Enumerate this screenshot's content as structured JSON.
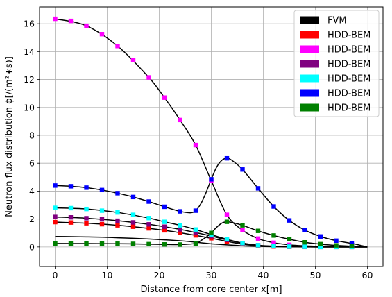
{
  "chart_data": {
    "type": "line",
    "xlabel": "Distance from core center x[m]",
    "ylabel": "Neutron flux distribution ϕ[/(m²∗s)]",
    "xlim": [
      -3,
      63
    ],
    "ylim": [
      -1.4,
      17.2
    ],
    "xticks": [
      0,
      10,
      20,
      30,
      40,
      50,
      60
    ],
    "yticks": [
      0,
      2,
      4,
      6,
      8,
      10,
      12,
      14,
      16
    ],
    "grid": true,
    "legend_position": "top-right",
    "colors": {
      "fvm": "#000000",
      "red": "#ff0000",
      "magenta": "#ff00ff",
      "purple": "#800080",
      "cyan": "#00ffff",
      "blue": "#0000ff",
      "green": "#008000"
    },
    "series": [
      {
        "name": "FVM",
        "color": "#000000",
        "style": "line",
        "x": [
          0,
          3,
          6,
          9,
          12,
          15,
          18,
          21,
          24,
          26,
          27,
          28,
          29,
          30,
          31,
          33,
          36,
          39,
          42,
          45,
          48,
          51,
          54,
          57,
          60
        ],
        "y": [
          0.75,
          0.74,
          0.72,
          0.7,
          0.66,
          0.62,
          0.57,
          0.51,
          0.44,
          0.38,
          0.34,
          0.3,
          0.26,
          0.22,
          0.2,
          0.15,
          0.08,
          0.04,
          0.02,
          0.01,
          0.01,
          0.0,
          0.0,
          0.0,
          0.0
        ]
      },
      {
        "name": "HDD-BEM",
        "color": "#ff0000",
        "style": "markers",
        "x": [
          0,
          3,
          6,
          9,
          12,
          15,
          18,
          21,
          24,
          27,
          30,
          33,
          36,
          39,
          42,
          45,
          48,
          51,
          54,
          57
        ],
        "y": [
          1.78,
          1.75,
          1.7,
          1.63,
          1.55,
          1.45,
          1.33,
          1.19,
          1.02,
          0.83,
          0.62,
          0.4,
          0.2,
          0.08,
          0.03,
          0.01,
          0.0,
          0.0,
          0.0,
          0.0
        ]
      },
      {
        "name": "HDD-BEM",
        "color": "#ff00ff",
        "style": "markers",
        "x": [
          0,
          3,
          6,
          9,
          12,
          15,
          18,
          21,
          24,
          27,
          30,
          33,
          36,
          39,
          42,
          45,
          48,
          51,
          54,
          57
        ],
        "y": [
          16.35,
          16.2,
          15.85,
          15.25,
          14.4,
          13.4,
          12.15,
          10.7,
          9.1,
          7.3,
          4.75,
          2.3,
          1.2,
          0.6,
          0.3,
          0.15,
          0.08,
          0.04,
          0.02,
          0.0
        ]
      },
      {
        "name": "HDD-BEM",
        "color": "#800080",
        "style": "markers",
        "x": [
          0,
          3,
          6,
          9,
          12,
          15,
          18,
          21,
          24,
          27,
          30,
          33,
          36,
          39,
          42,
          45,
          48,
          51,
          54,
          57
        ],
        "y": [
          2.15,
          2.12,
          2.06,
          1.98,
          1.88,
          1.76,
          1.62,
          1.45,
          1.26,
          1.03,
          0.78,
          0.5,
          0.26,
          0.12,
          0.05,
          0.02,
          0.01,
          0.0,
          0.0,
          0.0
        ]
      },
      {
        "name": "HDD-BEM",
        "color": "#00ffff",
        "style": "markers",
        "x": [
          0,
          3,
          6,
          9,
          12,
          15,
          18,
          21,
          24,
          27,
          30,
          33,
          36,
          39,
          42,
          45,
          48,
          51,
          54,
          57
        ],
        "y": [
          2.8,
          2.78,
          2.72,
          2.6,
          2.47,
          2.3,
          2.07,
          1.8,
          1.55,
          1.25,
          0.88,
          0.55,
          0.28,
          0.12,
          0.05,
          0.02,
          0.01,
          0.0,
          0.0,
          0.0
        ]
      },
      {
        "name": "HDD-BEM",
        "color": "#0000ff",
        "style": "markers",
        "x": [
          0,
          3,
          6,
          9,
          12,
          15,
          18,
          21,
          24,
          27,
          30,
          33,
          36,
          39,
          42,
          45,
          48,
          51,
          54,
          57
        ],
        "y": [
          4.4,
          4.35,
          4.25,
          4.08,
          3.85,
          3.58,
          3.25,
          2.88,
          2.55,
          2.6,
          4.85,
          6.35,
          5.55,
          4.2,
          2.9,
          1.9,
          1.2,
          0.75,
          0.45,
          0.25
        ]
      },
      {
        "name": "HDD-BEM",
        "color": "#008000",
        "style": "markers",
        "x": [
          0,
          3,
          6,
          9,
          12,
          15,
          18,
          21,
          24,
          27,
          30,
          33,
          36,
          39,
          42,
          45,
          48,
          51,
          54,
          57
        ],
        "y": [
          0.25,
          0.25,
          0.24,
          0.24,
          0.23,
          0.22,
          0.2,
          0.18,
          0.17,
          0.25,
          1.0,
          1.8,
          1.55,
          1.15,
          0.82,
          0.55,
          0.33,
          0.2,
          0.11,
          0.05
        ]
      }
    ],
    "extra_curves": [
      {
        "color": "#000000",
        "x": [
          0,
          6,
          12,
          18,
          21,
          24,
          27,
          30,
          33,
          36,
          39,
          42,
          45,
          48,
          51,
          54,
          57,
          60
        ],
        "y": [
          1.78,
          1.7,
          1.55,
          1.33,
          1.19,
          1.02,
          0.83,
          0.62,
          0.4,
          0.2,
          0.08,
          0.03,
          0.01,
          0.0,
          0.0,
          0.0,
          0.0,
          0.0
        ]
      },
      {
        "color": "#000000",
        "x": [
          0,
          6,
          12,
          18,
          21,
          24,
          27,
          30,
          33,
          36,
          39,
          42,
          45,
          48,
          51,
          54,
          57,
          60
        ],
        "y": [
          16.35,
          15.85,
          14.4,
          12.15,
          10.7,
          9.1,
          7.3,
          4.75,
          2.3,
          1.2,
          0.6,
          0.3,
          0.15,
          0.08,
          0.04,
          0.02,
          0.0,
          0.0
        ]
      },
      {
        "color": "#000000",
        "x": [
          0,
          6,
          12,
          18,
          21,
          24,
          27,
          30,
          33,
          36,
          39,
          42,
          45,
          48,
          51,
          54,
          57,
          60
        ],
        "y": [
          2.15,
          2.06,
          1.88,
          1.62,
          1.45,
          1.26,
          1.03,
          0.78,
          0.5,
          0.26,
          0.12,
          0.05,
          0.02,
          0.01,
          0.0,
          0.0,
          0.0,
          0.0
        ]
      },
      {
        "color": "#000000",
        "x": [
          0,
          6,
          12,
          18,
          21,
          24,
          27,
          30,
          33,
          36,
          39,
          42,
          45,
          48,
          51,
          54,
          57,
          60
        ],
        "y": [
          2.8,
          2.72,
          2.47,
          2.07,
          1.8,
          1.55,
          1.25,
          0.88,
          0.55,
          0.28,
          0.12,
          0.05,
          0.02,
          0.01,
          0.0,
          0.0,
          0.0,
          0.0
        ]
      },
      {
        "color": "#000000",
        "x": [
          0,
          3,
          6,
          9,
          12,
          15,
          18,
          21,
          24,
          26,
          27,
          28,
          29,
          30,
          31,
          32,
          33,
          34,
          36,
          39,
          42,
          45,
          48,
          51,
          54,
          57,
          60
        ],
        "y": [
          4.4,
          4.35,
          4.25,
          4.08,
          3.85,
          3.58,
          3.25,
          2.88,
          2.55,
          2.45,
          2.6,
          3.1,
          3.9,
          4.85,
          5.7,
          6.2,
          6.35,
          6.2,
          5.55,
          4.2,
          2.9,
          1.9,
          1.2,
          0.75,
          0.45,
          0.25,
          0.0
        ]
      },
      {
        "color": "#000000",
        "x": [
          0,
          6,
          12,
          18,
          21,
          24,
          27,
          28,
          29,
          30,
          31,
          32,
          33,
          34,
          36,
          39,
          42,
          45,
          48,
          51,
          54,
          57,
          60
        ],
        "y": [
          0.25,
          0.24,
          0.23,
          0.2,
          0.18,
          0.17,
          0.25,
          0.45,
          0.7,
          1.0,
          1.4,
          1.7,
          1.8,
          1.75,
          1.55,
          1.15,
          0.82,
          0.55,
          0.33,
          0.2,
          0.11,
          0.05,
          0.0
        ]
      }
    ]
  }
}
